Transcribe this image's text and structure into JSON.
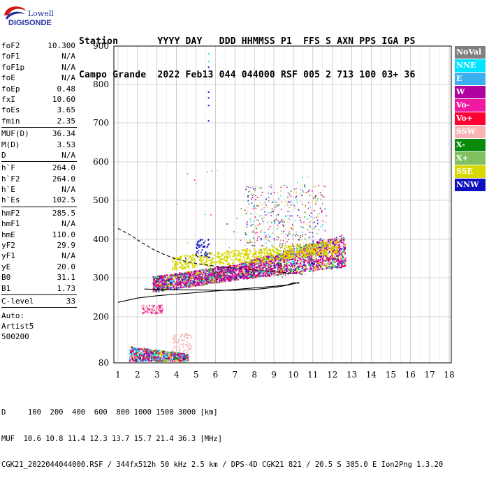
{
  "logo": {
    "brand": "Lowell",
    "name": "DIGISONDE"
  },
  "header": {
    "line1": "Station       YYYY DAY   DDD HHMMSS P1  FFS S AXN PPS IGA PS",
    "line2": "Campo Grande  2022 Feb13 044 044000 RSF 005 2 713 100 03+ 36"
  },
  "params": [
    {
      "name": "foF2",
      "value": "10.300"
    },
    {
      "name": "foF1",
      "value": "N/A"
    },
    {
      "name": "foF1p",
      "value": "N/A"
    },
    {
      "name": "foE",
      "value": "N/A"
    },
    {
      "name": "foEp",
      "value": "0.48"
    },
    {
      "name": "fxI",
      "value": "10.60"
    },
    {
      "name": "foEs",
      "value": "3.65"
    },
    {
      "name": "fmin",
      "value": "2.35"
    },
    {
      "sep": true
    },
    {
      "name": "MUF(D)",
      "value": "36.34"
    },
    {
      "name": "M(D)",
      "value": "3.53"
    },
    {
      "name": "D",
      "value": "N/A"
    },
    {
      "sep": true
    },
    {
      "name": "h`F",
      "value": "264.0"
    },
    {
      "name": "h`F2",
      "value": "264.0"
    },
    {
      "name": "h`E",
      "value": "N/A"
    },
    {
      "name": "h`Es",
      "value": "102.5"
    },
    {
      "sep": true
    },
    {
      "name": "hmF2",
      "value": "285.5"
    },
    {
      "name": "hmF1",
      "value": "N/A"
    },
    {
      "name": "hmE",
      "value": "110.0"
    },
    {
      "name": "yF2",
      "value": "29.9"
    },
    {
      "name": "yF1",
      "value": "N/A"
    },
    {
      "name": "yE",
      "value": "20.0"
    },
    {
      "name": "B0",
      "value": "31.1"
    },
    {
      "name": "B1",
      "value": "1.73"
    },
    {
      "sep": true
    },
    {
      "name": "C-level",
      "value": "33"
    },
    {
      "sep": true
    }
  ],
  "autoscale": {
    "line1": "Auto:",
    "line2": "Artist5",
    "line3": "500200"
  },
  "legend": [
    {
      "label": "NoVal",
      "color": "#808080",
      "text": "#ffffff"
    },
    {
      "label": "NNE",
      "color": "#00e5ff",
      "text": "#ffffff"
    },
    {
      "label": "E",
      "color": "#3ab0f0",
      "text": "#ffffff"
    },
    {
      "label": "W",
      "color": "#b0009e",
      "text": "#ffffff"
    },
    {
      "label": "Vo-",
      "color": "#f01aa0",
      "text": "#ffffff"
    },
    {
      "label": "Vo+",
      "color": "#ff0033",
      "text": "#ffffff"
    },
    {
      "label": "SSW",
      "color": "#f8b4b4",
      "text": "#ffffff"
    },
    {
      "label": "X-",
      "color": "#0a8a0a",
      "text": "#ffffff"
    },
    {
      "label": "X+",
      "color": "#80c060",
      "text": "#ffffff"
    },
    {
      "label": "SSE",
      "color": "#d8d800",
      "text": "#ffffff"
    },
    {
      "label": "NNW",
      "color": "#1010c0",
      "text": "#ffffff"
    }
  ],
  "footer": {
    "line1": "D     100  200  400  600  800 1000 1500 3000 [km]",
    "line2": "MUF  10.6 10.8 11.4 12.3 13.7 15.7 21.4 36.3 [MHz]",
    "line3": "CGK21_2022044044000.RSF / 344fx512h 50 kHz 2.5 km / DPS-4D CGK21 821 / 20.5 S 305.0 E Ion2Png 1.3.20"
  },
  "chart_data": {
    "type": "scatter",
    "title": "",
    "xlabel": "",
    "ylabel": "",
    "xlim": [
      1,
      18
    ],
    "ylim": [
      80,
      900
    ],
    "x_ticks": [
      1,
      2,
      3,
      4,
      5,
      6,
      7,
      8,
      9,
      10,
      11,
      12,
      13,
      14,
      15,
      16,
      17,
      18
    ],
    "y_ticks": [
      80,
      200,
      300,
      400,
      500,
      600,
      700,
      800,
      900
    ],
    "grid": true,
    "legend_position": "right",
    "echo_clusters": [
      {
        "name": "Es",
        "x_range": [
          1.6,
          4.6
        ],
        "y_range": [
          82,
          150
        ],
        "dominant": "W"
      },
      {
        "name": "Es-multihop",
        "x_range": [
          2.2,
          3.3
        ],
        "y_range": [
          205,
          230
        ],
        "dominant": "SSW"
      },
      {
        "name": "F-trace-o",
        "x_range": [
          2.8,
          12.8
        ],
        "y_range": [
          260,
          420
        ],
        "dominant": "W"
      },
      {
        "name": "spread-F",
        "x_range": [
          7.5,
          11.5
        ],
        "y_range": [
          380,
          560
        ],
        "dominant": "SSE"
      },
      {
        "name": "NNW-high",
        "x_range": [
          5.6,
          5.7
        ],
        "y_range": [
          700,
          880
        ],
        "dominant": "NNW"
      }
    ],
    "profile_solid": [
      [
        2.35,
        271
      ],
      [
        3,
        270
      ],
      [
        4,
        269
      ],
      [
        5,
        269
      ],
      [
        6,
        268
      ],
      [
        7,
        268
      ],
      [
        8,
        270
      ],
      [
        9,
        275
      ],
      [
        9.6,
        280
      ],
      [
        10.0,
        287
      ],
      [
        10.3,
        286
      ]
    ],
    "profile_dashed": [
      [
        1,
        428
      ],
      [
        1.6,
        412
      ],
      [
        2.2,
        392
      ],
      [
        2.8,
        374
      ],
      [
        3.4,
        360
      ],
      [
        4,
        348
      ],
      [
        5,
        337
      ],
      [
        6,
        330
      ],
      [
        7,
        325
      ],
      [
        8,
        320
      ],
      [
        9,
        316
      ],
      [
        10,
        312
      ],
      [
        10.6,
        308
      ]
    ],
    "profile_solid_lower": [
      [
        1,
        237
      ],
      [
        2,
        248
      ],
      [
        3,
        254
      ],
      [
        4,
        258
      ],
      [
        5,
        262
      ],
      [
        6,
        266
      ],
      [
        7,
        270
      ],
      [
        8,
        274
      ],
      [
        9,
        278
      ],
      [
        9.8,
        282
      ],
      [
        10.3,
        288
      ]
    ]
  }
}
